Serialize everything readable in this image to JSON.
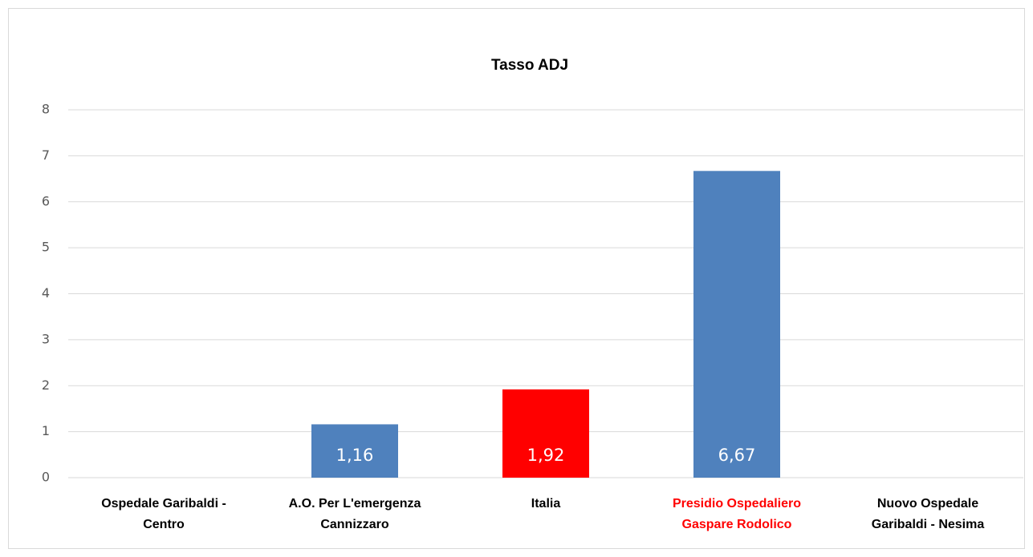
{
  "chart_data": {
    "type": "bar",
    "title": "Tasso ADJ",
    "categories": [
      "Ospedale Garibaldi - Centro",
      "A.O. Per L'emergenza Cannizzaro",
      "Italia",
      "Presidio Ospedaliero Gaspare Rodolico",
      "Nuovo Ospedale Garibaldi - Nesima"
    ],
    "values": [
      null,
      1.16,
      1.92,
      6.67,
      null
    ],
    "value_labels": [
      null,
      "1,16",
      "1,92",
      "6,67",
      null
    ],
    "colors": [
      "#4f81bd",
      "#4f81bd",
      "#ff0000",
      "#4f81bd",
      "#4f81bd"
    ],
    "category_label_colors": [
      "#000000",
      "#000000",
      "#000000",
      "#ff0000",
      "#000000"
    ],
    "ylim": [
      0,
      8
    ],
    "yticks": [
      0,
      1,
      2,
      3,
      4,
      5,
      6,
      7,
      8
    ],
    "grid": true
  }
}
